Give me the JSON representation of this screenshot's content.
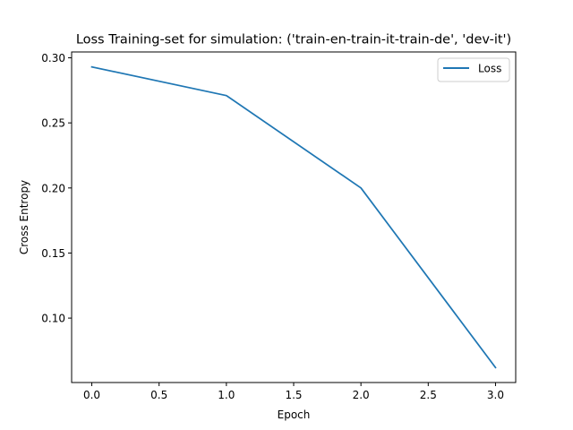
{
  "chart_data": {
    "type": "line",
    "title": "Loss Training-set for simulation: ('train-en-train-it-train-de', 'dev-it')",
    "xlabel": "Epoch",
    "ylabel": "Cross Entropy",
    "x": [
      0,
      1,
      2,
      3
    ],
    "series": [
      {
        "name": "Loss",
        "values": [
          0.293,
          0.271,
          0.2,
          0.062
        ],
        "color": "#1f77b4"
      }
    ],
    "xlim": [
      -0.15,
      3.15
    ],
    "ylim": [
      0.0505,
      0.3045
    ],
    "xticks": [
      "0.0",
      "0.5",
      "1.0",
      "1.5",
      "2.0",
      "2.5",
      "3.0"
    ],
    "xtick_values": [
      0,
      0.5,
      1,
      1.5,
      2,
      2.5,
      3
    ],
    "yticks": [
      "0.10",
      "0.15",
      "0.20",
      "0.25",
      "0.30"
    ],
    "ytick_values": [
      0.1,
      0.15,
      0.2,
      0.25,
      0.3
    ],
    "grid": false,
    "legend_position": "top-right"
  }
}
